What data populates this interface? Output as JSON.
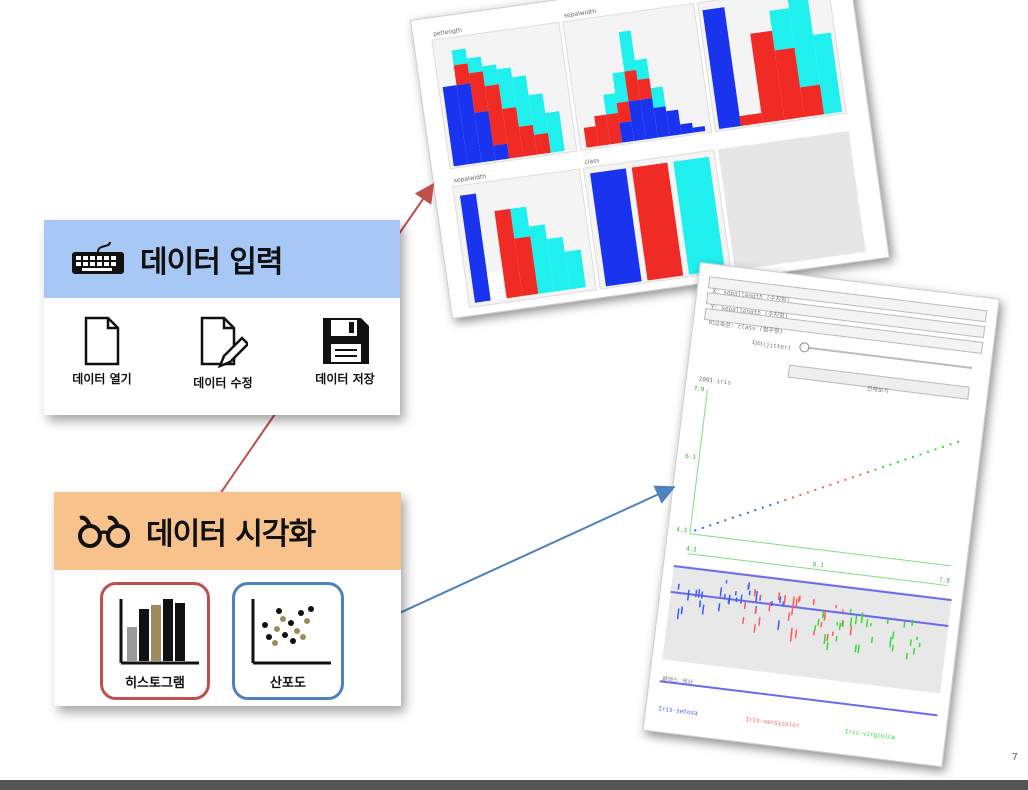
{
  "input_panel": {
    "title": "데이터 입력",
    "tools": [
      {
        "label": "데이터 열기",
        "icon": "file-icon"
      },
      {
        "label": "데이터 수정",
        "icon": "file-edit-icon"
      },
      {
        "label": "데이터 저장",
        "icon": "floppy-disk-icon"
      }
    ],
    "header_color": "#a7c7f5",
    "icon": "keyboard-icon"
  },
  "viz_panel": {
    "title": "데이터 시각화",
    "header_color": "#f7c28c",
    "icon": "glasses-icon",
    "buttons": [
      {
        "label": "히스토그램",
        "icon": "bar-chart-icon",
        "border": "#c0504d"
      },
      {
        "label": "산포도",
        "icon": "scatter-plot-icon",
        "border": "#4f81bd"
      }
    ]
  },
  "histogram_sheet": {
    "cells": [
      {
        "label": "petlength"
      },
      {
        "label": "sepalwidth"
      },
      {
        "label": "petalwidth"
      },
      {
        "label": "sepalwidth"
      },
      {
        "label": "class"
      }
    ],
    "colors": {
      "blue": "#1a33ee",
      "red": "#f02a24",
      "cyan": "#1ff0ee"
    }
  },
  "scatter_sheet": {
    "x_field": "X: sepallength (수치형)",
    "y_field": "Y: sepallength (수치형)",
    "compare_field": "비교속성: class (범주형)",
    "jitter_label": "지터(jitter)",
    "view_all_button": "전체보기",
    "plot_title": "2001 iris",
    "axis_labels": {
      "y_top": "7.9",
      "y_mid": "6.1",
      "y_bot": "4.3",
      "x_left": "4.3",
      "x_mid": "6.1",
      "x_right": "7.9"
    },
    "class_title": "클래스 색상",
    "classes": [
      {
        "name": "Iris-setosa",
        "color": "#3a5cff"
      },
      {
        "name": "Iris-versicolor",
        "color": "#ff5a5a"
      },
      {
        "name": "Iris-virginica",
        "color": "#33dd33"
      }
    ]
  },
  "page_number": "7"
}
